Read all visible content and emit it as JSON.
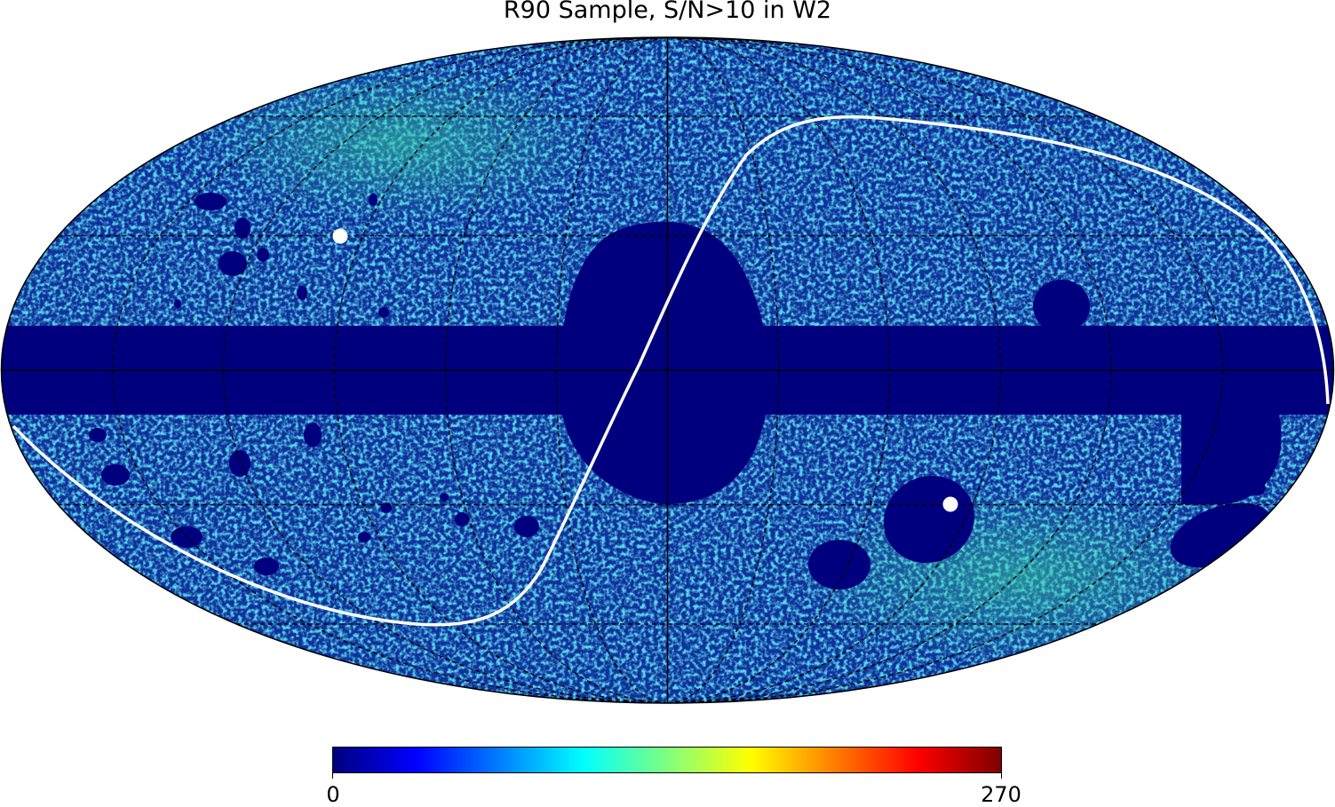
{
  "title": "R90 Sample, S/N>10 in W2",
  "colorbar": {
    "min_label": "0",
    "max_label": "270",
    "colormap": "jet",
    "stops": [
      "#00007f",
      "#0000ff",
      "#007fff",
      "#00ffff",
      "#7fff7f",
      "#ffff00",
      "#ff7f00",
      "#ff0000",
      "#7f0000"
    ]
  },
  "map": {
    "projection": "mollweide",
    "graticule": "dashed",
    "background_color": "#10309a",
    "masked_color": "#00007f",
    "overlay_color": "#ffffff",
    "grid_color": "#000000"
  }
}
